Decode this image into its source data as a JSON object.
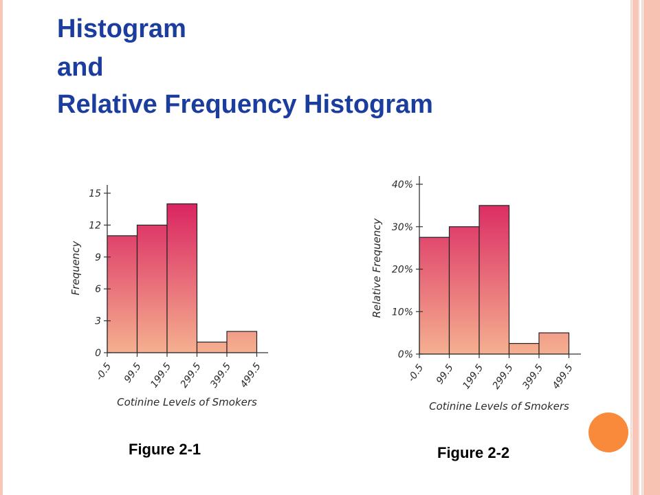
{
  "slide": {
    "title_lines": [
      "Histogram",
      "and",
      "Relative Frequency Histogram"
    ],
    "captions": [
      "Figure 2-1",
      "Figure 2-2"
    ]
  },
  "colors": {
    "title": "#1a3d9e",
    "bar_top": "#d81b5e",
    "bar_bottom": "#f5b090",
    "bar_outline": "#222222",
    "border_stripe": "#f6b4a2",
    "orange_dot": "#f98a3c"
  },
  "chart_data": [
    {
      "type": "bar",
      "title": "",
      "xlabel": "Cotinine Levels of Smokers",
      "ylabel": "Frequency",
      "x_ticks": [
        "-0.5",
        "99.5",
        "199.5",
        "299.5",
        "399.5",
        "499.5"
      ],
      "values": [
        11,
        12,
        14,
        1,
        2
      ],
      "ylim": [
        0,
        15
      ],
      "y_ticks": [
        {
          "value": 0,
          "label": "0"
        },
        {
          "value": 3,
          "label": "3"
        },
        {
          "value": 6,
          "label": "6"
        },
        {
          "value": 9,
          "label": "9"
        },
        {
          "value": 12,
          "label": "12"
        },
        {
          "value": 15,
          "label": "15"
        }
      ],
      "grid": false
    },
    {
      "type": "bar",
      "title": "",
      "xlabel": "Cotinine Levels of Smokers",
      "ylabel": "Relative Frequency",
      "x_ticks": [
        "-0.5",
        "99.5",
        "199.5",
        "299.5",
        "399.5",
        "499.5"
      ],
      "values": [
        27.5,
        30,
        35,
        2.5,
        5
      ],
      "ylim": [
        0,
        40
      ],
      "y_ticks": [
        {
          "value": 0,
          "label": "0%"
        },
        {
          "value": 10,
          "label": "10%"
        },
        {
          "value": 20,
          "label": "20%"
        },
        {
          "value": 30,
          "label": "30%"
        },
        {
          "value": 40,
          "label": "40%"
        }
      ],
      "grid": false
    }
  ]
}
